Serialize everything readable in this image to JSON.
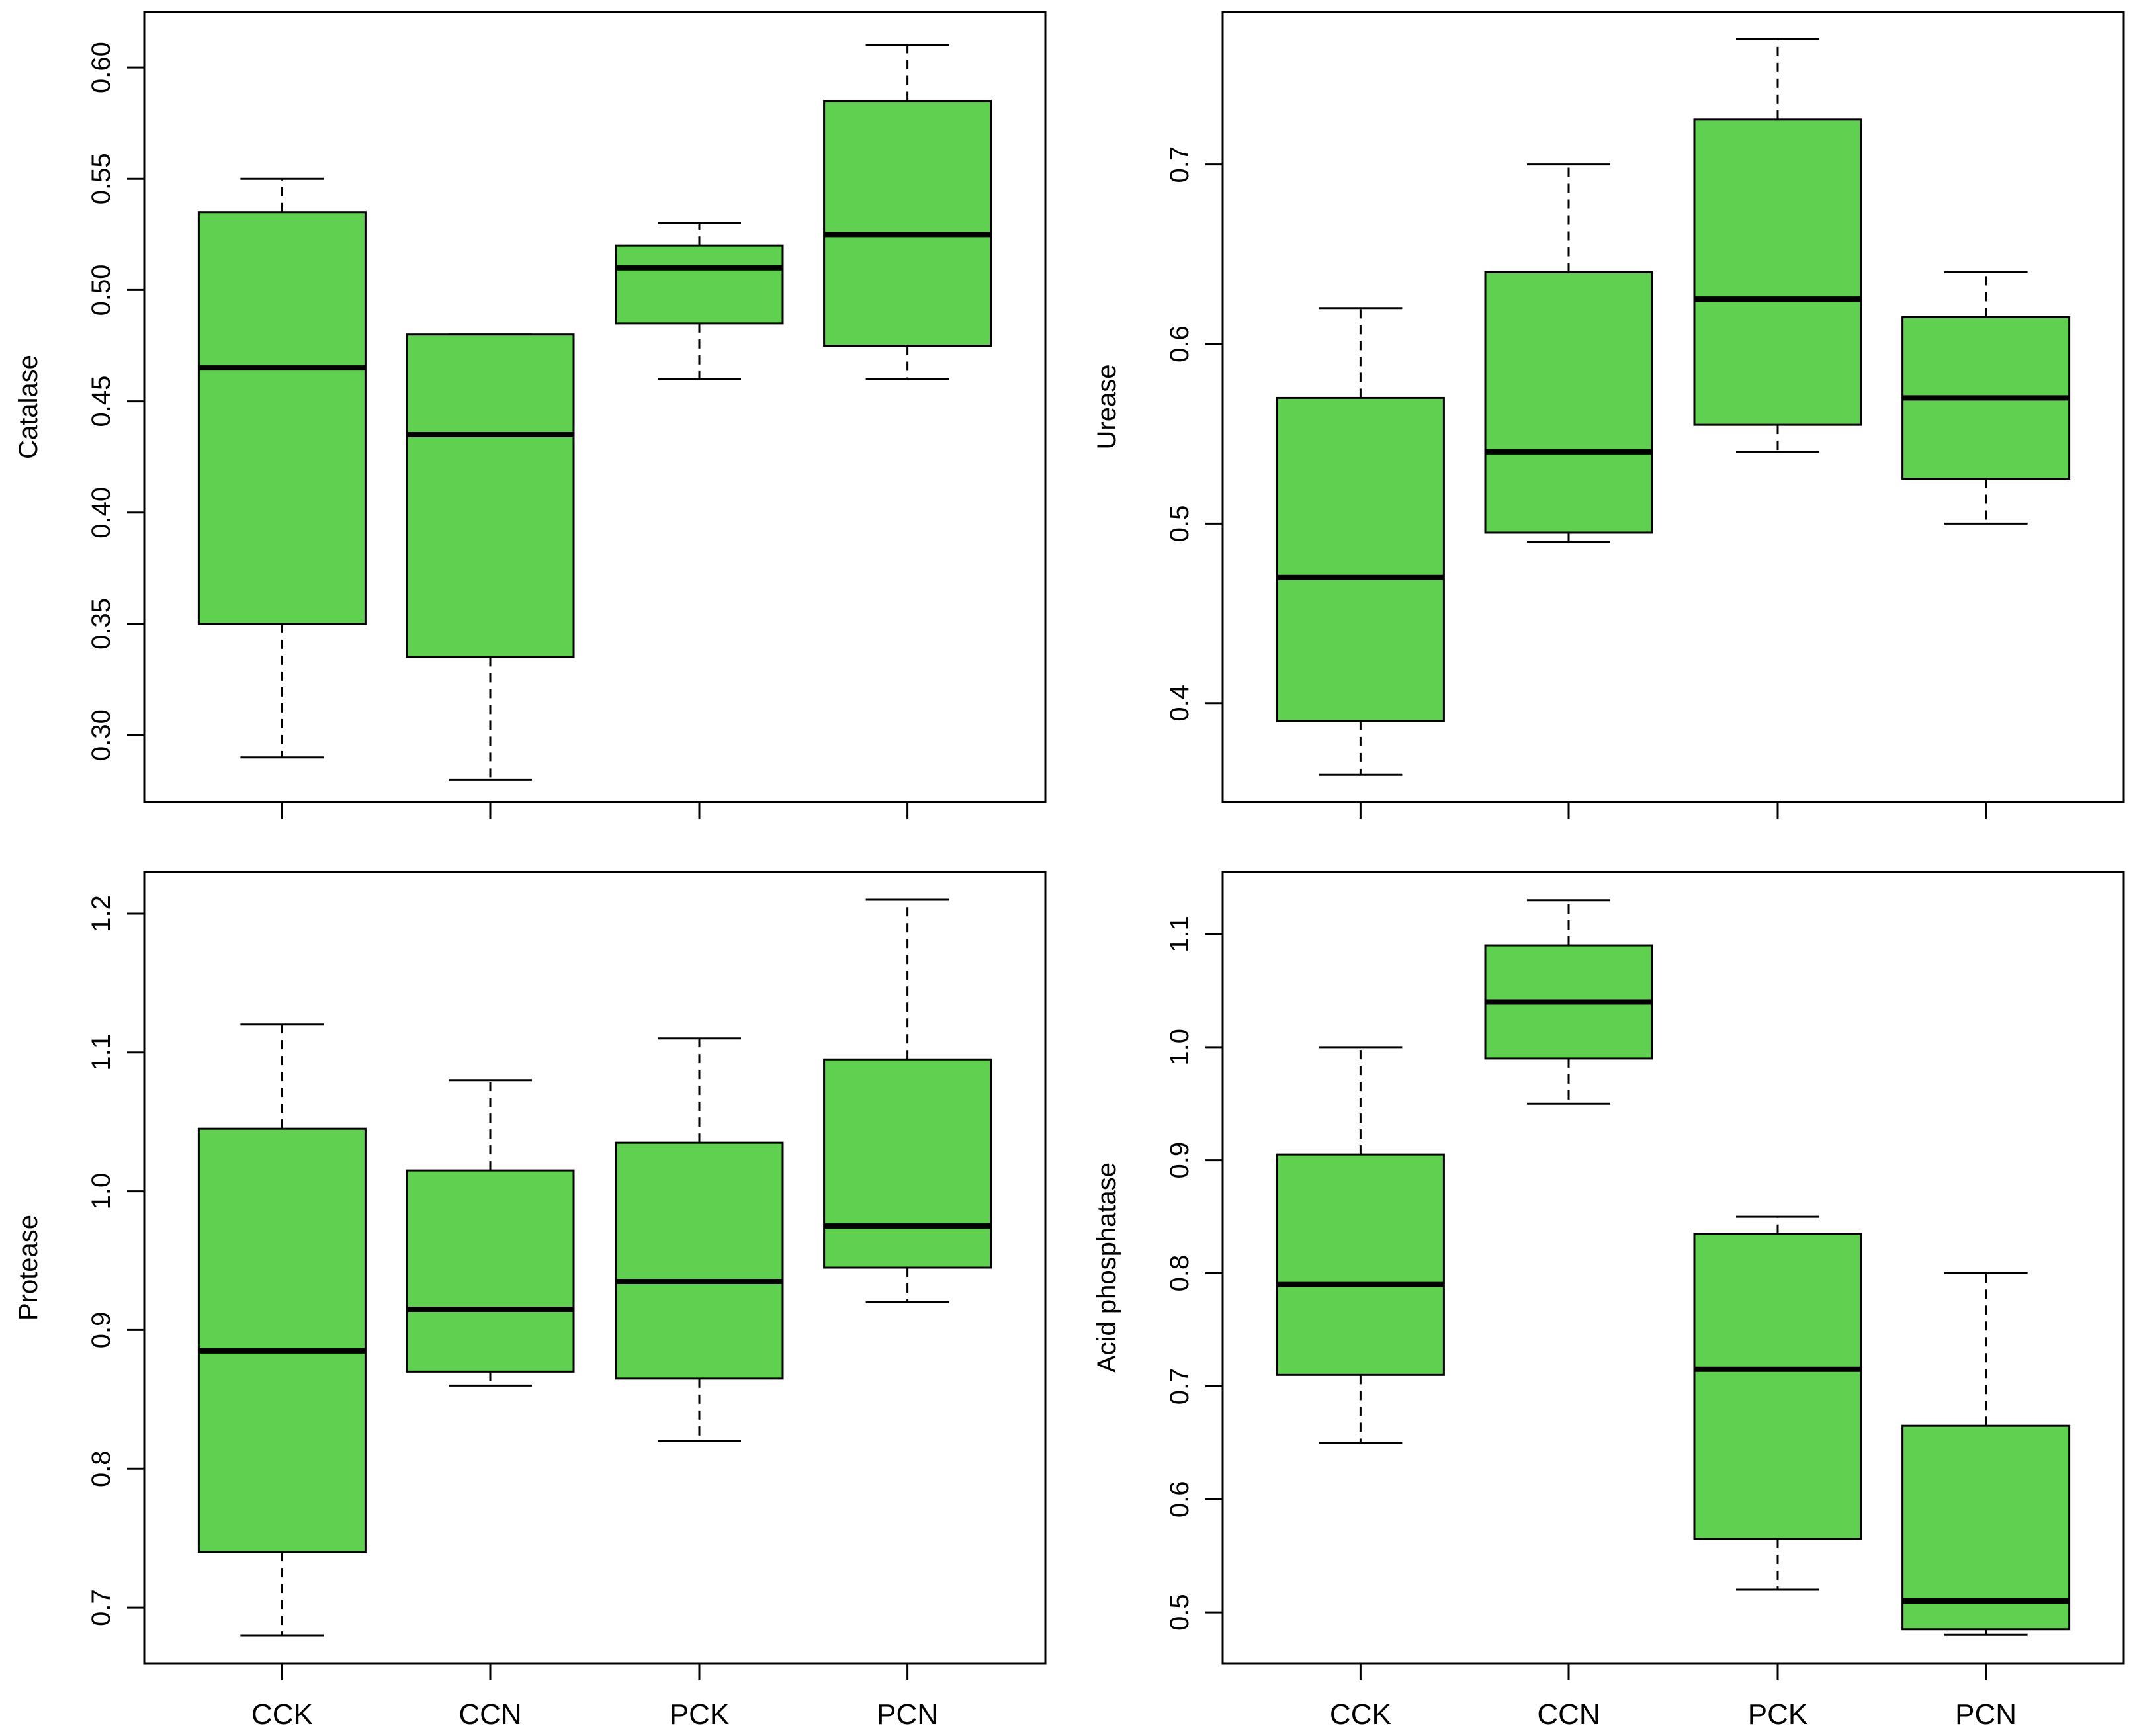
{
  "figure": {
    "box_fill": "#60d050",
    "box_stroke": "#000000"
  },
  "chart_data": [
    {
      "type": "boxplot",
      "position": "top-left",
      "ylabel": "Catalase",
      "categories": [
        "CCK",
        "CCN",
        "PCK",
        "PCN"
      ],
      "show_x_labels": false,
      "ylim": [
        0.27,
        0.625
      ],
      "yticks": [
        0.3,
        0.35,
        0.4,
        0.45,
        0.5,
        0.55,
        0.6
      ],
      "ytick_labels": [
        "0.30",
        "0.35",
        "0.40",
        "0.45",
        "0.50",
        "0.55",
        "0.60"
      ],
      "boxes": [
        {
          "min": 0.29,
          "q1": 0.35,
          "median": 0.465,
          "q3": 0.535,
          "max": 0.55
        },
        {
          "min": 0.28,
          "q1": 0.335,
          "median": 0.435,
          "q3": 0.48,
          "max": 0.48
        },
        {
          "min": 0.46,
          "q1": 0.485,
          "median": 0.51,
          "q3": 0.52,
          "max": 0.53
        },
        {
          "min": 0.46,
          "q1": 0.475,
          "median": 0.525,
          "q3": 0.585,
          "max": 0.61
        }
      ]
    },
    {
      "type": "boxplot",
      "position": "top-right",
      "ylabel": "Urease",
      "categories": [
        "CCK",
        "CCN",
        "PCK",
        "PCN"
      ],
      "show_x_labels": false,
      "ylim": [
        0.345,
        0.785
      ],
      "yticks": [
        0.4,
        0.5,
        0.6,
        0.7
      ],
      "ytick_labels": [
        "0.4",
        "0.5",
        "0.6",
        "0.7"
      ],
      "boxes": [
        {
          "min": 0.36,
          "q1": 0.39,
          "median": 0.47,
          "q3": 0.57,
          "max": 0.62
        },
        {
          "min": 0.49,
          "q1": 0.495,
          "median": 0.54,
          "q3": 0.64,
          "max": 0.7
        },
        {
          "min": 0.54,
          "q1": 0.555,
          "median": 0.625,
          "q3": 0.725,
          "max": 0.77
        },
        {
          "min": 0.5,
          "q1": 0.525,
          "median": 0.57,
          "q3": 0.615,
          "max": 0.64
        }
      ]
    },
    {
      "type": "boxplot",
      "position": "bottom-left",
      "ylabel": "Protease",
      "categories": [
        "CCK",
        "CCN",
        "PCK",
        "PCN"
      ],
      "show_x_labels": true,
      "ylim": [
        0.66,
        1.23
      ],
      "yticks": [
        0.7,
        0.8,
        0.9,
        1.0,
        1.1,
        1.2
      ],
      "ytick_labels": [
        "0.7",
        "0.8",
        "0.9",
        "1.0",
        "1.1",
        "1.2"
      ],
      "boxes": [
        {
          "min": 0.68,
          "q1": 0.74,
          "median": 0.885,
          "q3": 1.045,
          "max": 1.12
        },
        {
          "min": 0.86,
          "q1": 0.87,
          "median": 0.915,
          "q3": 1.015,
          "max": 1.08
        },
        {
          "min": 0.82,
          "q1": 0.865,
          "median": 0.935,
          "q3": 1.035,
          "max": 1.11
        },
        {
          "min": 0.92,
          "q1": 0.945,
          "median": 0.975,
          "q3": 1.095,
          "max": 1.21
        }
      ]
    },
    {
      "type": "boxplot",
      "position": "bottom-right",
      "ylabel": "Acid phosphatase",
      "categories": [
        "CCK",
        "CCN",
        "PCK",
        "PCN"
      ],
      "show_x_labels": true,
      "ylim": [
        0.455,
        1.155
      ],
      "yticks": [
        0.5,
        0.6,
        0.7,
        0.8,
        0.9,
        1.0,
        1.1
      ],
      "ytick_labels": [
        "0.5",
        "0.6",
        "0.7",
        "0.8",
        "0.9",
        "1.0",
        "1.1"
      ],
      "boxes": [
        {
          "min": 0.65,
          "q1": 0.71,
          "median": 0.79,
          "q3": 0.905,
          "max": 1.0
        },
        {
          "min": 0.95,
          "q1": 0.99,
          "median": 1.04,
          "q3": 1.09,
          "max": 1.13
        },
        {
          "min": 0.52,
          "q1": 0.565,
          "median": 0.715,
          "q3": 0.835,
          "max": 0.85
        },
        {
          "min": 0.48,
          "q1": 0.485,
          "median": 0.51,
          "q3": 0.665,
          "max": 0.8
        }
      ]
    }
  ]
}
